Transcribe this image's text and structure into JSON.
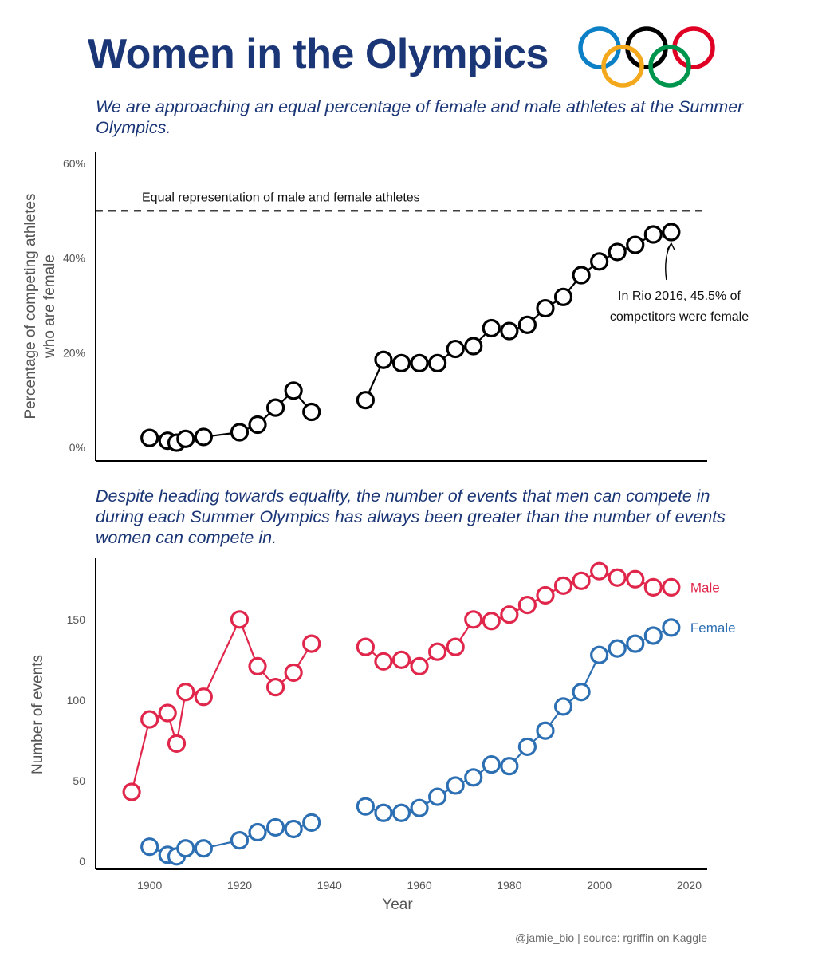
{
  "header": {
    "title": "Women in the Olympics",
    "subtitle_top": "We are approaching an equal percentage of female and male athletes at the Summer Olympics.",
    "subtitle_bottom": "Despite heading towards equality, the number of events that men can compete in during each Summer Olympics has always been greater than the number of events women can compete in.",
    "credit": "@jamie_bio | source: rgriffin on Kaggle"
  },
  "logo": {
    "icon": "olympic-rings-icon",
    "colors": [
      "#0b80c6",
      "#000000",
      "#df0024",
      "#f4a81c",
      "#00954d"
    ]
  },
  "chart_data": [
    {
      "type": "line",
      "ylabel": "Percentage of competing athletes who are female",
      "xlabel": "",
      "xlim": [
        1888,
        2024
      ],
      "ylim": [
        0,
        60
      ],
      "yticks": [
        0,
        20,
        40,
        60
      ],
      "ytick_labels": [
        "0%",
        "20%",
        "40%",
        "60%"
      ],
      "grid": false,
      "reference_line": {
        "y": 50,
        "label": "Equal representation of male and female athletes"
      },
      "annotation": {
        "x": 2016,
        "y": 45.5,
        "text_lines": [
          "In Rio 2016, 45.5% of",
          "competitors were female"
        ]
      },
      "series": [
        {
          "color": "#000000",
          "x": [
            1900,
            1904,
            1906,
            1908,
            1912,
            1920,
            1924,
            1928,
            1932,
            1936,
            1948,
            1952,
            1956,
            1960,
            1964,
            1968,
            1972,
            1976,
            1980,
            1984,
            1988,
            1992,
            1996,
            2000,
            2004,
            2008,
            2012,
            2016
          ],
          "y": [
            2.0,
            1.4,
            1.0,
            1.8,
            2.2,
            3.2,
            4.8,
            8.4,
            12.0,
            7.5,
            10.0,
            18.5,
            17.8,
            17.8,
            17.8,
            20.8,
            21.4,
            25.2,
            24.6,
            25.9,
            29.4,
            31.8,
            36.4,
            39.3,
            41.3,
            42.8,
            45.0,
            45.5
          ]
        }
      ]
    },
    {
      "type": "line",
      "xlabel": "Year",
      "ylabel": "Number of events",
      "xlim": [
        1888,
        2024
      ],
      "ylim": [
        -5,
        188
      ],
      "xticks": [
        1900,
        1920,
        1940,
        1960,
        1980,
        2000,
        2020
      ],
      "yticks": [
        0,
        50,
        100,
        150
      ],
      "grid": false,
      "series": [
        {
          "name": "Male",
          "color": "#e0264b",
          "x": [
            1896,
            1900,
            1904,
            1906,
            1908,
            1912,
            1920,
            1924,
            1928,
            1932,
            1936,
            1948,
            1952,
            1956,
            1960,
            1964,
            1968,
            1972,
            1976,
            1980,
            1984,
            1988,
            1992,
            1996,
            2000,
            2004,
            2008,
            2012,
            2016
          ],
          "y": [
            43,
            88,
            92,
            73,
            105,
            102,
            150,
            121,
            108,
            117,
            135,
            133,
            124,
            125,
            121,
            130,
            133,
            150,
            149,
            153,
            159,
            165,
            171,
            174,
            180,
            176,
            175,
            170,
            170
          ]
        },
        {
          "name": "Female",
          "color": "#2c6fb3",
          "x": [
            1900,
            1904,
            1906,
            1908,
            1912,
            1920,
            1924,
            1928,
            1932,
            1936,
            1948,
            1952,
            1956,
            1960,
            1964,
            1968,
            1972,
            1976,
            1980,
            1984,
            1988,
            1992,
            1996,
            2000,
            2004,
            2008,
            2012,
            2016
          ],
          "y": [
            9,
            4,
            3,
            8,
            8,
            13,
            18,
            21,
            20,
            24,
            34,
            30,
            30,
            33,
            40,
            47,
            52,
            60,
            59,
            71,
            81,
            96,
            105,
            128,
            132,
            135,
            140,
            145
          ]
        }
      ]
    }
  ]
}
